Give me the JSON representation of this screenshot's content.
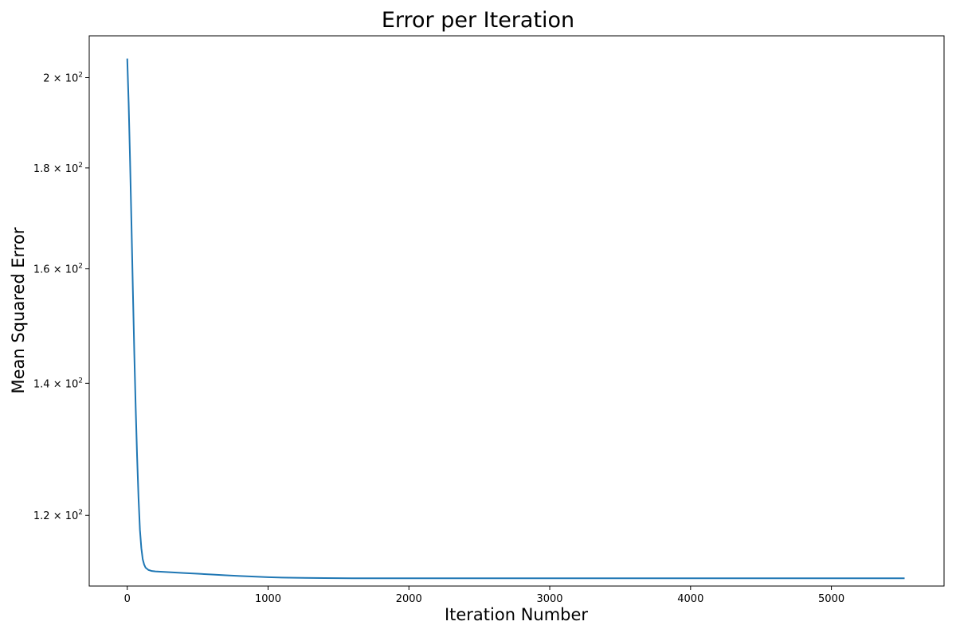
{
  "chart_data": {
    "type": "line",
    "title": "Error per Iteration",
    "xlabel": "Iteration Number",
    "ylabel": "Mean Squared Error",
    "y_scale": "log",
    "xlim": [
      -270,
      5800
    ],
    "ylim": [
      110.5,
      210
    ],
    "grid": false,
    "legend": "none",
    "line_color": "#1f77b4",
    "x_ticks": [
      {
        "value": 0,
        "label": "0"
      },
      {
        "value": 1000,
        "label": "1000"
      },
      {
        "value": 2000,
        "label": "2000"
      },
      {
        "value": 3000,
        "label": "3000"
      },
      {
        "value": 4000,
        "label": "4000"
      },
      {
        "value": 5000,
        "label": "5000"
      }
    ],
    "y_ticks": [
      {
        "value": 120,
        "mantissa": "1.2",
        "base": "10",
        "exponent": "2"
      },
      {
        "value": 140,
        "mantissa": "1.4",
        "base": "10",
        "exponent": "2"
      },
      {
        "value": 160,
        "mantissa": "1.6",
        "base": "10",
        "exponent": "2"
      },
      {
        "value": 180,
        "mantissa": "1.8",
        "base": "10",
        "exponent": "2"
      },
      {
        "value": 200,
        "mantissa": "2",
        "base": "10",
        "exponent": "2"
      }
    ],
    "series": [
      {
        "x": [
          0,
          10,
          20,
          30,
          40,
          50,
          60,
          70,
          80,
          90,
          100,
          110,
          120,
          130,
          150,
          175,
          200,
          250,
          300,
          400,
          500,
          600,
          700,
          800,
          900,
          1000,
          1100,
          1200,
          1400,
          1600,
          1800,
          2000,
          2500,
          3000,
          3500,
          4000,
          4500,
          5000,
          5520
        ],
        "y": [
          204.5,
          194.0,
          181.5,
          168.5,
          156.0,
          145.0,
          136.0,
          128.5,
          122.5,
          118.0,
          115.5,
          114.0,
          113.3,
          112.9,
          112.6,
          112.45,
          112.4,
          112.35,
          112.3,
          112.2,
          112.1,
          112.0,
          111.9,
          111.8,
          111.72,
          111.65,
          111.6,
          111.57,
          111.53,
          111.51,
          111.5,
          111.5,
          111.5,
          111.5,
          111.5,
          111.5,
          111.5,
          111.5,
          111.5
        ]
      }
    ]
  }
}
